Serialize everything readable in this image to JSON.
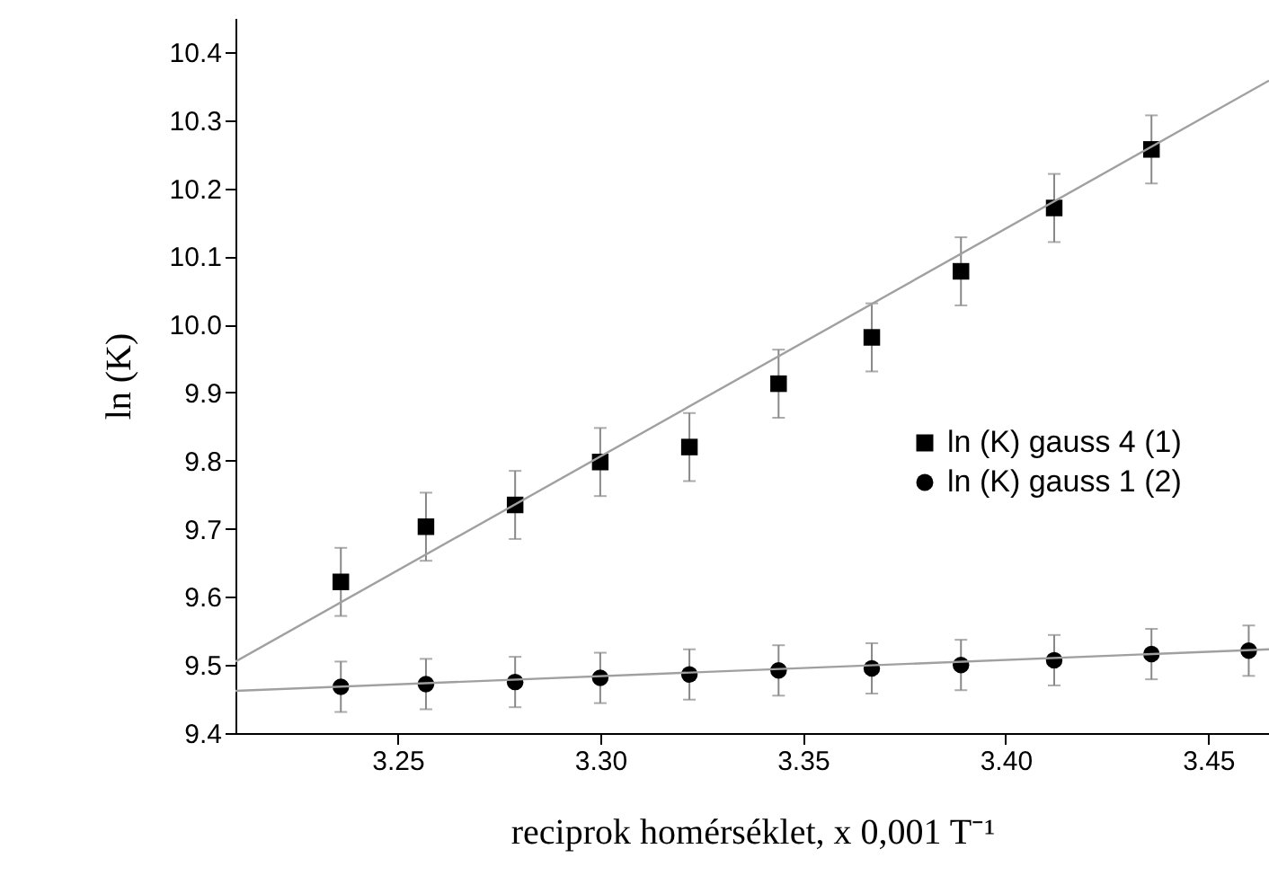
{
  "chart_data": {
    "type": "scatter",
    "xlabel": "reciprok homérséklet, x 0,001 T⁻¹",
    "ylabel": "ln (K)",
    "x": [
      3.236,
      3.257,
      3.279,
      3.3,
      3.322,
      3.344,
      3.367,
      3.389,
      3.412,
      3.436,
      3.46
    ],
    "series": [
      {
        "name": "ln (K) gauss 4 (1)",
        "color": "#000000",
        "marker": "square",
        "x": [
          3.236,
          3.257,
          3.279,
          3.3,
          3.322,
          3.344,
          3.367,
          3.389,
          3.412,
          3.436
        ],
        "values": [
          9.622,
          9.703,
          9.735,
          9.798,
          9.82,
          9.913,
          9.981,
          10.078,
          10.171,
          10.257
        ],
        "errors": [
          0.05,
          0.05,
          0.05,
          0.05,
          0.05,
          0.05,
          0.05,
          0.05,
          0.05,
          0.05
        ]
      },
      {
        "name": "ln (K) gauss 1 (2)",
        "color": "#000000",
        "marker": "circle",
        "values": [
          9.468,
          9.472,
          9.475,
          9.481,
          9.486,
          9.492,
          9.495,
          9.5,
          9.507,
          9.516,
          9.521
        ],
        "errors": [
          0.037,
          0.037,
          0.037,
          0.037,
          0.037,
          0.037,
          0.037,
          0.037,
          0.037,
          0.037,
          0.037
        ]
      },
      {
        "type": "line",
        "color": "#a0a0a0",
        "x": [
          3.21,
          3.465
        ],
        "values": [
          9.505,
          10.358
        ]
      },
      {
        "type": "line",
        "color": "#a0a0a0",
        "x": [
          3.21,
          3.465
        ],
        "values": [
          9.462,
          9.523
        ]
      }
    ],
    "xlim": [
      3.21,
      3.465
    ],
    "ylim": [
      9.4,
      10.45
    ],
    "xticks": [
      {
        "value": 3.25,
        "label": "3.25"
      },
      {
        "value": 3.3,
        "label": "3.30"
      },
      {
        "value": 3.35,
        "label": "3.35"
      },
      {
        "value": 3.4,
        "label": "3.40"
      },
      {
        "value": 3.45,
        "label": "3.45"
      }
    ],
    "yticks": [
      9.4,
      9.5,
      9.6,
      9.7,
      9.8,
      9.9,
      {
        "value": 10,
        "label": "10.0"
      },
      10.1,
      10.2,
      10.3,
      10.4
    ],
    "legend": "right",
    "grid": false,
    "line_style": "solid"
  }
}
